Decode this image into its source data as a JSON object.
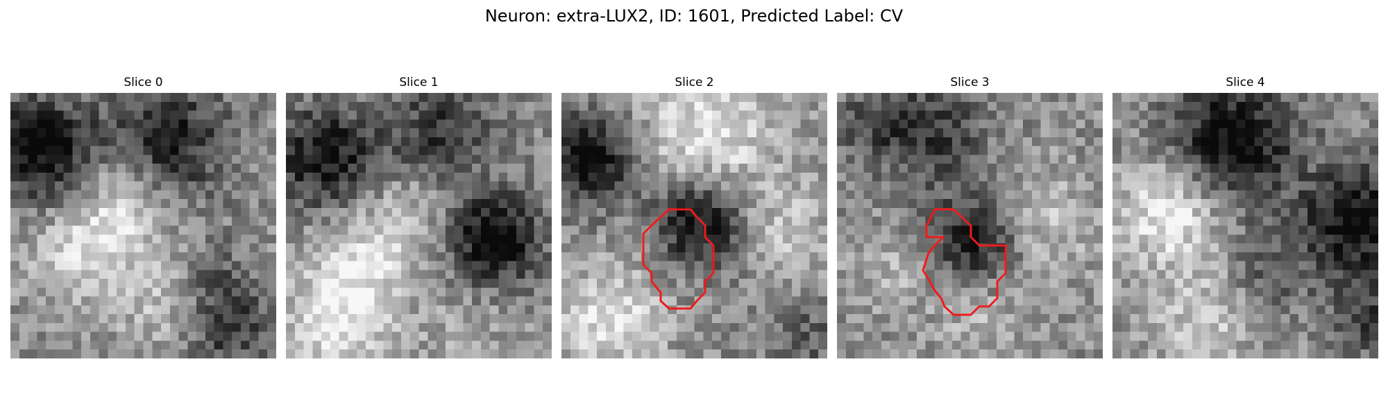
{
  "figure": {
    "title": "Neuron: extra-LUX2, ID: 1601, Predicted Label: CV"
  },
  "colors": {
    "contour": "#ee1c1c",
    "background": "#ffffff"
  },
  "panels": [
    {
      "title": "Slice 0",
      "has_contour": false
    },
    {
      "title": "Slice 1",
      "has_contour": false
    },
    {
      "title": "Slice 2",
      "has_contour": true
    },
    {
      "title": "Slice 3",
      "has_contour": true
    },
    {
      "title": "Slice 4",
      "has_contour": false
    }
  ]
}
